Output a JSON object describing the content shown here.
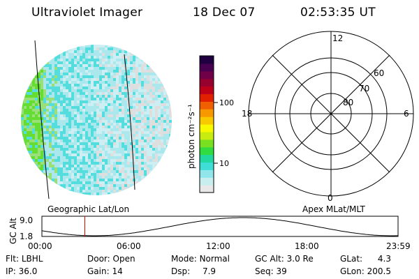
{
  "header": {
    "title": "Ultraviolet Imager",
    "date": "18 Dec 07",
    "time": "02:53:35 UT"
  },
  "colorbar": {
    "unit_label": "photon cm⁻²s⁻¹",
    "ticks": [
      "100",
      "10"
    ],
    "colors": [
      "#e8e8e8",
      "#c8eef0",
      "#90e6ea",
      "#40dcd8",
      "#20d8a0",
      "#30dc40",
      "#78e020",
      "#c8ec10",
      "#f8f800",
      "#f8c800",
      "#f89800",
      "#f06000",
      "#e02000",
      "#c00018",
      "#980030",
      "#700048",
      "#480050",
      "#200040"
    ]
  },
  "image_panel": {
    "label": "Geographic Lat/Lon",
    "colors": {
      "green": "#66dd33",
      "lightgreen": "#99e07a",
      "cyan": "#55dddd",
      "lightcyan": "#aae8ee",
      "paleblue": "#cdeef2",
      "grey": "#dedede"
    }
  },
  "polar": {
    "label": "Apex MLat/MLT",
    "mlt_labels": [
      "12",
      "6",
      "0",
      "18"
    ],
    "mlat_labels": [
      "60",
      "70",
      "80"
    ]
  },
  "altitude_plot": {
    "ylabel": "GC Alt",
    "ytick_top": "9.0",
    "ytick_bottom": "1.8",
    "xticks": [
      "00:00",
      "06:00",
      "12:00",
      "18:00",
      "23:59"
    ],
    "marker_time_fraction": 0.1205,
    "marker_color": "#dd0000"
  },
  "params": {
    "row1": [
      {
        "label": "Flt:",
        "value": "LBHL"
      },
      {
        "label": "Door:",
        "value": "Open"
      },
      {
        "label": "Mode:",
        "value": "Normal"
      },
      {
        "label": "GC Alt:",
        "value": "3.0 Re"
      },
      {
        "label": "GLat:",
        "value": "4.3"
      }
    ],
    "row2": [
      {
        "label": "IP:",
        "value": "36.0"
      },
      {
        "label": "Gain:",
        "value": "14"
      },
      {
        "label": "Dsp:",
        "value": "7.9"
      },
      {
        "label": "Seq:",
        "value": "39"
      },
      {
        "label": "GLon:",
        "value": "200.5"
      }
    ]
  }
}
